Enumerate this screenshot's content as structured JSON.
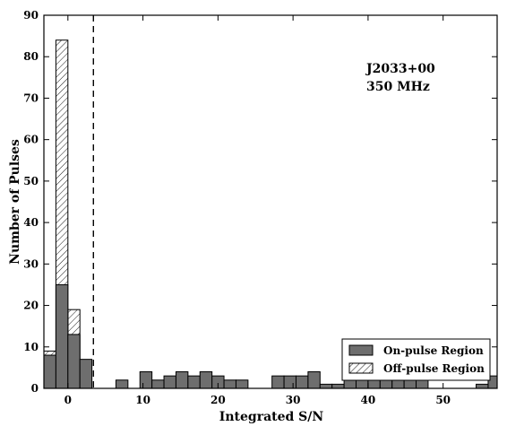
{
  "chart_data": {
    "type": "bar",
    "histogram": true,
    "bin_width": 1.6,
    "xlabel": "Integrated S/N",
    "ylabel": "Number of Pulses",
    "xlim": [
      -3.2,
      57.2
    ],
    "ylim": [
      0,
      90
    ],
    "xticks": [
      0,
      10,
      20,
      30,
      40,
      50
    ],
    "yticks": [
      0,
      10,
      20,
      30,
      40,
      50,
      60,
      70,
      80,
      90
    ],
    "annotations": [
      "J2033+00",
      "350 MHz"
    ],
    "threshold_line": {
      "x": 3.4,
      "style": "dashed"
    },
    "legend_position": "bottom-right",
    "series": [
      {
        "name": "On-pulse Region",
        "style": "filled",
        "color": "#6e6e6e",
        "bins": [
          {
            "x0": -3.2,
            "count": 8
          },
          {
            "x0": -1.6,
            "count": 25
          },
          {
            "x0": 0.0,
            "count": 13
          },
          {
            "x0": 1.6,
            "count": 7
          },
          {
            "x0": 3.2,
            "count": 0
          },
          {
            "x0": 4.8,
            "count": 0
          },
          {
            "x0": 6.4,
            "count": 2
          },
          {
            "x0": 8.0,
            "count": 0
          },
          {
            "x0": 9.6,
            "count": 4
          },
          {
            "x0": 11.2,
            "count": 2
          },
          {
            "x0": 12.8,
            "count": 3
          },
          {
            "x0": 14.4,
            "count": 4
          },
          {
            "x0": 16.0,
            "count": 3
          },
          {
            "x0": 17.6,
            "count": 4
          },
          {
            "x0": 19.2,
            "count": 3
          },
          {
            "x0": 20.8,
            "count": 2
          },
          {
            "x0": 22.4,
            "count": 2
          },
          {
            "x0": 24.0,
            "count": 0
          },
          {
            "x0": 25.6,
            "count": 0
          },
          {
            "x0": 27.2,
            "count": 3
          },
          {
            "x0": 28.8,
            "count": 3
          },
          {
            "x0": 30.4,
            "count": 3
          },
          {
            "x0": 32.0,
            "count": 4
          },
          {
            "x0": 33.6,
            "count": 1
          },
          {
            "x0": 35.2,
            "count": 1
          },
          {
            "x0": 36.8,
            "count": 2
          },
          {
            "x0": 38.4,
            "count": 2
          },
          {
            "x0": 40.0,
            "count": 2
          },
          {
            "x0": 41.6,
            "count": 2
          },
          {
            "x0": 43.2,
            "count": 2
          },
          {
            "x0": 44.8,
            "count": 2
          },
          {
            "x0": 46.4,
            "count": 2
          },
          {
            "x0": 48.0,
            "count": 0
          },
          {
            "x0": 49.6,
            "count": 0
          },
          {
            "x0": 51.2,
            "count": 0
          },
          {
            "x0": 52.8,
            "count": 0
          },
          {
            "x0": 54.4,
            "count": 1
          },
          {
            "x0": 56.0,
            "count": 3
          }
        ]
      },
      {
        "name": "Off-pulse Region",
        "style": "hatched",
        "color": "#000000",
        "bins": [
          {
            "x0": -3.2,
            "count": 9
          },
          {
            "x0": -1.6,
            "count": 84
          },
          {
            "x0": 0.0,
            "count": 19
          },
          {
            "x0": 1.6,
            "count": 0
          }
        ]
      }
    ]
  }
}
